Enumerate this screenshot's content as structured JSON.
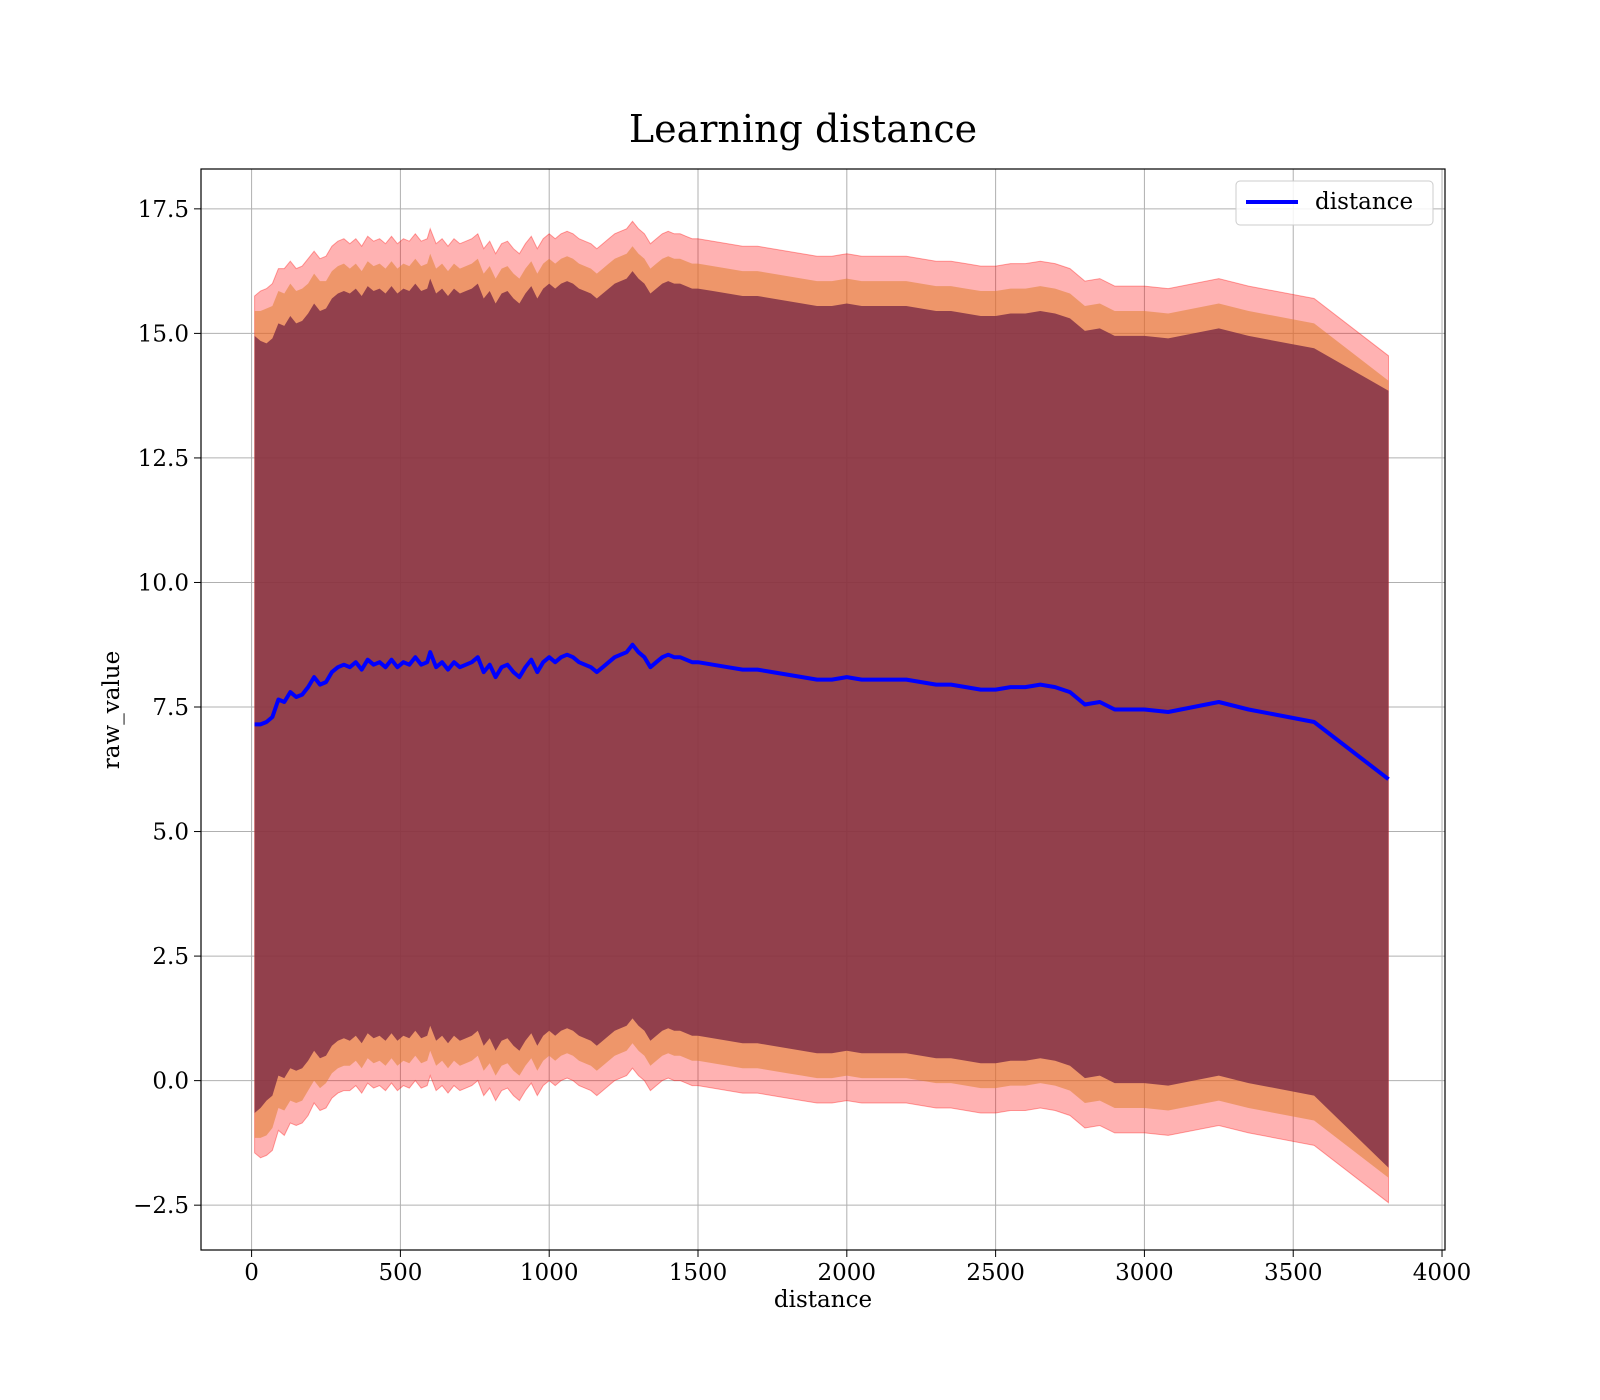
{
  "chart_data": {
    "type": "line",
    "title": "Learning distance",
    "xlabel": "distance",
    "ylabel": "raw_value",
    "xlim": [
      -170,
      4010
    ],
    "ylim": [
      -3.4,
      18.3
    ],
    "xticks": [
      0,
      500,
      1000,
      1500,
      2000,
      2500,
      3000,
      3500,
      4000
    ],
    "xtick_labels": [
      "0",
      "500",
      "1000",
      "1500",
      "2000",
      "2500",
      "3000",
      "3500",
      "4000"
    ],
    "yticks": [
      -2.5,
      0.0,
      2.5,
      5.0,
      7.5,
      10.0,
      12.5,
      15.0,
      17.5
    ],
    "ytick_labels": [
      "−2.5",
      "0.0",
      "2.5",
      "5.0",
      "7.5",
      "10.0",
      "12.5",
      "15.0",
      "17.5"
    ],
    "grid": true,
    "legend": {
      "position": "top-right",
      "entries": [
        "distance"
      ]
    },
    "colors": {
      "line": "#0000ff",
      "band_outer": "#ff0000",
      "band_middle": "#e08030",
      "band_inner": "#7a2a45"
    },
    "series": [
      {
        "name": "distance",
        "x": [
          10,
          30,
          50,
          70,
          90,
          110,
          130,
          150,
          170,
          190,
          210,
          230,
          250,
          270,
          290,
          310,
          330,
          350,
          370,
          390,
          410,
          430,
          450,
          470,
          490,
          510,
          530,
          550,
          570,
          590,
          600,
          620,
          640,
          660,
          680,
          700,
          720,
          740,
          760,
          780,
          800,
          820,
          840,
          860,
          880,
          900,
          920,
          940,
          960,
          980,
          1000,
          1020,
          1040,
          1060,
          1080,
          1100,
          1120,
          1140,
          1160,
          1180,
          1200,
          1220,
          1240,
          1260,
          1280,
          1300,
          1320,
          1340,
          1360,
          1380,
          1400,
          1420,
          1440,
          1460,
          1480,
          1500,
          1550,
          1600,
          1650,
          1700,
          1750,
          1800,
          1850,
          1900,
          1950,
          2000,
          2050,
          2100,
          2150,
          2200,
          2250,
          2300,
          2350,
          2400,
          2450,
          2500,
          2550,
          2600,
          2650,
          2700,
          2750,
          2800,
          2850,
          2900,
          3000,
          3080,
          3250,
          3350,
          3570,
          3820
        ],
        "y": [
          7.15,
          7.15,
          7.2,
          7.3,
          7.65,
          7.6,
          7.8,
          7.7,
          7.75,
          7.9,
          8.1,
          7.95,
          8.0,
          8.2,
          8.3,
          8.35,
          8.3,
          8.4,
          8.25,
          8.45,
          8.35,
          8.4,
          8.3,
          8.45,
          8.3,
          8.4,
          8.35,
          8.5,
          8.35,
          8.4,
          8.6,
          8.3,
          8.4,
          8.25,
          8.4,
          8.3,
          8.35,
          8.4,
          8.5,
          8.2,
          8.35,
          8.1,
          8.3,
          8.35,
          8.2,
          8.1,
          8.3,
          8.45,
          8.2,
          8.4,
          8.5,
          8.4,
          8.5,
          8.55,
          8.5,
          8.4,
          8.35,
          8.3,
          8.2,
          8.3,
          8.4,
          8.5,
          8.55,
          8.6,
          8.75,
          8.6,
          8.5,
          8.3,
          8.4,
          8.5,
          8.55,
          8.5,
          8.5,
          8.45,
          8.4,
          8.4,
          8.35,
          8.3,
          8.25,
          8.25,
          8.2,
          8.15,
          8.1,
          8.05,
          8.05,
          8.1,
          8.05,
          8.05,
          8.05,
          8.05,
          8.0,
          7.95,
          7.95,
          7.9,
          7.85,
          7.85,
          7.9,
          7.9,
          7.95,
          7.9,
          7.8,
          7.55,
          7.6,
          7.45,
          7.45,
          7.4,
          7.6,
          7.45,
          7.2,
          6.05
        ],
        "std_outer": [
          8.6,
          8.7,
          8.7,
          8.7,
          8.65,
          8.7,
          8.65,
          8.6,
          8.6,
          8.6,
          8.55,
          8.55,
          8.55,
          8.55,
          8.55,
          8.55,
          8.5,
          8.5,
          8.5,
          8.5,
          8.5,
          8.5,
          8.5,
          8.5,
          8.5,
          8.5,
          8.5,
          8.5,
          8.5,
          8.5,
          8.5,
          8.5,
          8.5,
          8.5,
          8.5,
          8.5,
          8.5,
          8.5,
          8.5,
          8.5,
          8.5,
          8.5,
          8.5,
          8.5,
          8.5,
          8.5,
          8.5,
          8.5,
          8.5,
          8.5,
          8.5,
          8.5,
          8.5,
          8.5,
          8.5,
          8.5,
          8.5,
          8.5,
          8.5,
          8.5,
          8.5,
          8.5,
          8.5,
          8.5,
          8.5,
          8.5,
          8.5,
          8.5,
          8.5,
          8.5,
          8.5,
          8.5,
          8.5,
          8.5,
          8.5,
          8.5,
          8.5,
          8.5,
          8.5,
          8.5,
          8.5,
          8.5,
          8.5,
          8.5,
          8.5,
          8.5,
          8.5,
          8.5,
          8.5,
          8.5,
          8.5,
          8.5,
          8.5,
          8.5,
          8.5,
          8.5,
          8.5,
          8.5,
          8.5,
          8.5,
          8.5,
          8.5,
          8.5,
          8.5,
          8.5,
          8.5,
          8.5,
          8.5,
          8.5,
          8.5
        ],
        "std_middle": [
          8.3,
          8.3,
          8.3,
          8.25,
          8.2,
          8.2,
          8.2,
          8.15,
          8.15,
          8.1,
          8.1,
          8.1,
          8.05,
          8.05,
          8.05,
          8.05,
          8.0,
          8.0,
          8.0,
          8.0,
          8.0,
          8.0,
          8.0,
          8.0,
          8.0,
          8.0,
          8.0,
          8.0,
          8.0,
          8.0,
          8.0,
          8.0,
          8.0,
          8.0,
          8.0,
          8.0,
          8.0,
          8.0,
          8.0,
          8.0,
          8.0,
          8.0,
          8.0,
          8.0,
          8.0,
          8.0,
          8.0,
          8.0,
          8.0,
          8.0,
          8.0,
          8.0,
          8.0,
          8.0,
          8.0,
          8.0,
          8.0,
          8.0,
          8.0,
          8.0,
          8.0,
          8.0,
          8.0,
          8.0,
          8.0,
          8.0,
          8.0,
          8.0,
          8.0,
          8.0,
          8.0,
          8.0,
          8.0,
          8.0,
          8.0,
          8.0,
          8.0,
          8.0,
          8.0,
          8.0,
          8.0,
          8.0,
          8.0,
          8.0,
          8.0,
          8.0,
          8.0,
          8.0,
          8.0,
          8.0,
          8.0,
          8.0,
          8.0,
          8.0,
          8.0,
          8.0,
          8.0,
          8.0,
          8.0,
          8.0,
          8.0,
          8.0,
          8.0,
          8.0,
          8.0,
          8.0,
          8.0,
          8.0,
          8.0,
          8.0
        ],
        "std_inner": [
          7.8,
          7.7,
          7.6,
          7.6,
          7.55,
          7.55,
          7.55,
          7.5,
          7.5,
          7.5,
          7.5,
          7.5,
          7.5,
          7.5,
          7.5,
          7.5,
          7.5,
          7.5,
          7.5,
          7.5,
          7.5,
          7.5,
          7.5,
          7.5,
          7.5,
          7.5,
          7.5,
          7.5,
          7.5,
          7.5,
          7.5,
          7.5,
          7.5,
          7.5,
          7.5,
          7.5,
          7.5,
          7.5,
          7.5,
          7.5,
          7.5,
          7.5,
          7.5,
          7.5,
          7.5,
          7.5,
          7.5,
          7.5,
          7.5,
          7.5,
          7.5,
          7.5,
          7.5,
          7.5,
          7.5,
          7.5,
          7.5,
          7.5,
          7.5,
          7.5,
          7.5,
          7.5,
          7.5,
          7.5,
          7.5,
          7.5,
          7.5,
          7.5,
          7.5,
          7.5,
          7.5,
          7.5,
          7.5,
          7.5,
          7.5,
          7.5,
          7.5,
          7.5,
          7.5,
          7.5,
          7.5,
          7.5,
          7.5,
          7.5,
          7.5,
          7.5,
          7.5,
          7.5,
          7.5,
          7.5,
          7.5,
          7.5,
          7.5,
          7.5,
          7.5,
          7.5,
          7.5,
          7.5,
          7.5,
          7.5,
          7.5,
          7.5,
          7.5,
          7.5,
          7.5,
          7.5,
          7.5,
          7.5,
          7.5,
          7.8
        ]
      }
    ]
  }
}
